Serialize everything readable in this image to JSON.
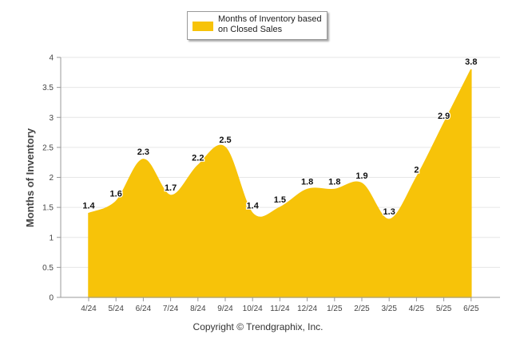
{
  "chart_data": {
    "type": "area",
    "categories": [
      "4/24",
      "5/24",
      "6/24",
      "7/24",
      "8/24",
      "9/24",
      "10/24",
      "11/24",
      "12/24",
      "1/25",
      "2/25",
      "3/25",
      "4/25",
      "5/25",
      "6/25"
    ],
    "series": [
      {
        "name": "Months of Inventory based\non Closed Sales",
        "values": [
          1.4,
          1.6,
          2.3,
          1.7,
          2.2,
          2.5,
          1.4,
          1.5,
          1.8,
          1.8,
          1.9,
          1.3,
          2,
          2.9,
          3.8
        ],
        "data_labels": [
          "1.4",
          "1.6",
          "2.3",
          "1.7",
          "2.2",
          "2.5",
          "1.4",
          "1.5",
          "1.8",
          "1.8",
          "1.9",
          "1.3",
          "2",
          "2.9",
          "3.8"
        ],
        "color": "#f7c309"
      }
    ],
    "ylabel": "Months of Inventory",
    "xlabel": "",
    "ylim": [
      0,
      4
    ],
    "yticks": [
      0,
      0.5,
      1,
      1.5,
      2,
      2.5,
      3,
      3.5,
      4
    ],
    "ytick_labels": [
      "0",
      "0.5",
      "1",
      "1.5",
      "2",
      "2.5",
      "3",
      "3.5",
      "4"
    ],
    "grid": true,
    "legend_position": "top-center"
  },
  "footer": {
    "copyright": "Copyright © Trendgraphix, Inc."
  },
  "colors": {
    "area": "#f7c309",
    "grid": "#e6e6e6",
    "axis": "#999999"
  }
}
